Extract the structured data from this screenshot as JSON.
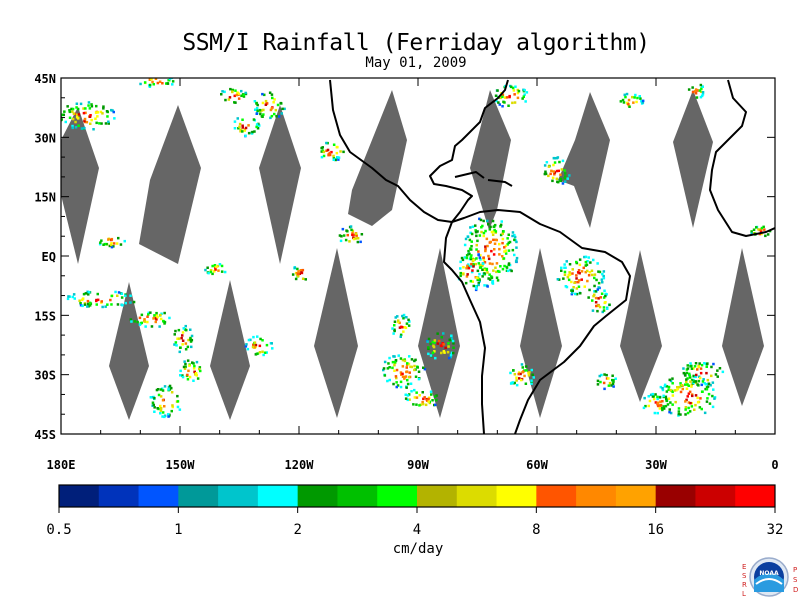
{
  "title": "SSM/I Rainfall (Ferriday algorithm)",
  "subtitle": "May 01, 2009",
  "map": {
    "lon_range": [
      180,
      360
    ],
    "lat_range": [
      -45,
      45
    ],
    "y_tick_labels": [
      "45N",
      "30N",
      "15N",
      "EQ",
      "15S",
      "30S",
      "45S"
    ],
    "y_tick_values": [
      45,
      30,
      15,
      0,
      -15,
      -30,
      -45
    ],
    "x_tick_labels": [
      "180E",
      "150W",
      "120W",
      "90W",
      "60W",
      "30W",
      "0"
    ],
    "x_tick_values": [
      180,
      210,
      240,
      270,
      300,
      330,
      360
    ],
    "no_data_color": "#666666",
    "coastline_color": "#000000"
  },
  "colorbar": {
    "tick_labels": [
      "0.5",
      "1",
      "2",
      "4",
      "8",
      "16",
      "32"
    ],
    "unit_label": "cm/day",
    "colors": [
      "#001f7a",
      "#0033bb",
      "#0055ff",
      "#009999",
      "#00c5cc",
      "#00ffff",
      "#009900",
      "#00c000",
      "#00ff00",
      "#b3b300",
      "#dcdc00",
      "#ffff00",
      "#ff5500",
      "#ff8800",
      "#ffa200",
      "#990000",
      "#cc0000",
      "#ff0000"
    ]
  },
  "logo": {
    "left_letters": [
      "E",
      "S",
      "R",
      "L"
    ],
    "right_letters": [
      "P",
      "S",
      "D"
    ],
    "center_text": "NOAA"
  }
}
